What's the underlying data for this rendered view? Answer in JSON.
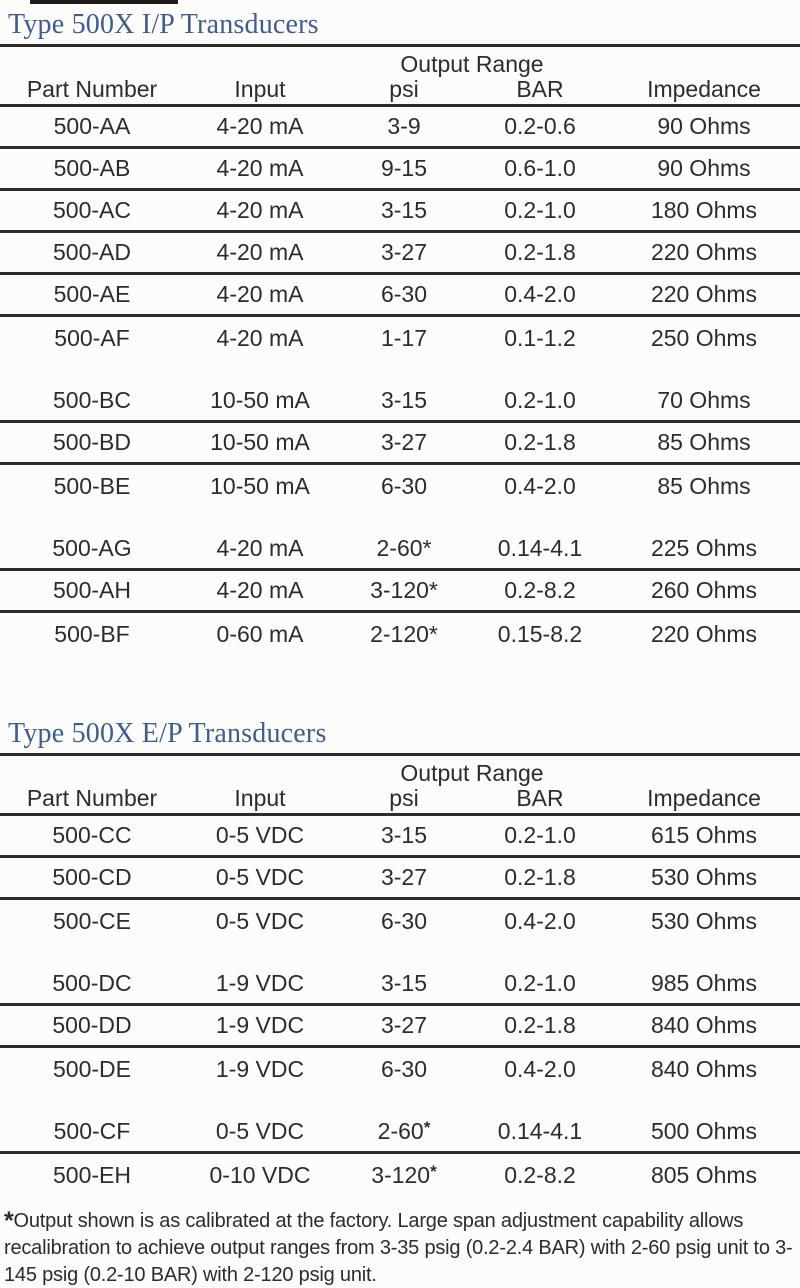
{
  "colors": {
    "title_blue": "#3d5d92",
    "text_color": "#2e2c2a",
    "rule_color": "#2f2d2b"
  },
  "tables": [
    {
      "id": "ip",
      "title": "Type 500X I/P Transducers",
      "output_range_label": "Output Range",
      "columns": [
        "Part Number",
        "Input",
        "psi",
        "BAR",
        "Impedance"
      ],
      "asterisk_superscript": false,
      "groups": [
        {
          "rows": [
            [
              "500-AA",
              "4-20 mA",
              "3-9",
              "0.2-0.6",
              "90 Ohms"
            ],
            [
              "500-AB",
              "4-20 mA",
              "9-15",
              "0.6-1.0",
              "90 Ohms"
            ],
            [
              "500-AC",
              "4-20 mA",
              "3-15",
              "0.2-1.0",
              "180 Ohms"
            ],
            [
              "500-AD",
              "4-20 mA",
              "3-27",
              "0.2-1.8",
              "220 Ohms"
            ],
            [
              "500-AE",
              "4-20 mA",
              "6-30",
              "0.4-2.0",
              "220 Ohms"
            ],
            [
              "500-AF",
              "4-20 mA",
              "1-17",
              "0.1-1.2",
              "250 Ohms"
            ]
          ]
        },
        {
          "rows": [
            [
              "500-BC",
              "10-50 mA",
              "3-15",
              "0.2-1.0",
              "70 Ohms"
            ],
            [
              "500-BD",
              "10-50 mA",
              "3-27",
              "0.2-1.8",
              "85 Ohms"
            ],
            [
              "500-BE",
              "10-50 mA",
              "6-30",
              "0.4-2.0",
              "85 Ohms"
            ]
          ]
        },
        {
          "rows": [
            [
              "500-AG",
              "4-20 mA",
              "2-60*",
              "0.14-4.1",
              "225 Ohms"
            ],
            [
              "500-AH",
              "4-20 mA",
              "3-120*",
              "0.2-8.2",
              "260 Ohms"
            ],
            [
              "500-BF",
              "0-60 mA",
              "2-120*",
              "0.15-8.2",
              "220 Ohms"
            ]
          ]
        }
      ]
    },
    {
      "id": "ep",
      "title": "Type 500X E/P Transducers",
      "output_range_label": "Output Range",
      "columns": [
        "Part Number",
        "Input",
        "psi",
        "BAR",
        "Impedance"
      ],
      "asterisk_superscript": true,
      "groups": [
        {
          "rows": [
            [
              "500-CC",
              "0-5 VDC",
              "3-15",
              "0.2-1.0",
              "615 Ohms"
            ],
            [
              "500-CD",
              "0-5 VDC",
              "3-27",
              "0.2-1.8",
              "530 Ohms"
            ],
            [
              "500-CE",
              "0-5 VDC",
              "6-30",
              "0.4-2.0",
              "530 Ohms"
            ]
          ]
        },
        {
          "rows": [
            [
              "500-DC",
              "1-9 VDC",
              "3-15",
              "0.2-1.0",
              "985 Ohms"
            ],
            [
              "500-DD",
              "1-9 VDC",
              "3-27",
              "0.2-1.8",
              "840 Ohms"
            ],
            [
              "500-DE",
              "1-9 VDC",
              "6-30",
              "0.4-2.0",
              "840 Ohms"
            ]
          ]
        },
        {
          "rows": [
            [
              "500-CF",
              "0-5 VDC",
              "2-60*",
              "0.14-4.1",
              "500 Ohms"
            ],
            [
              "500-EH",
              "0-10 VDC",
              "3-120*",
              "0.2-8.2",
              "805 Ohms"
            ]
          ]
        }
      ]
    }
  ],
  "footnote": {
    "marker": "*",
    "text": "Output shown is as calibrated at the factory. Large span adjustment capability allows recalibration to achieve output ranges from 3-35 psig (0.2-2.4 BAR) with 2-60 psig unit to 3-145 psig (0.2-10 BAR) with 2-120 psig unit."
  }
}
